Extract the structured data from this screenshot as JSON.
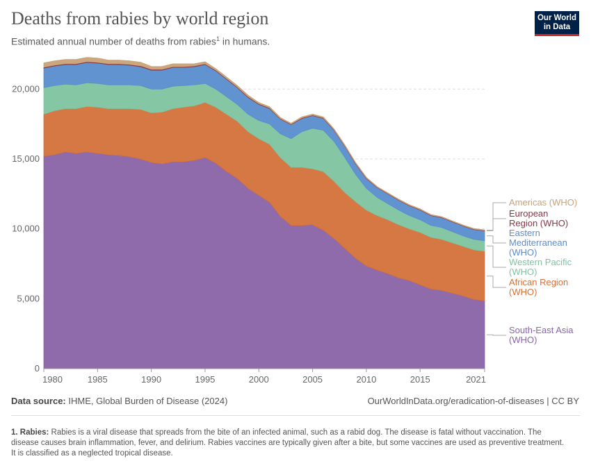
{
  "header": {
    "title": "Deaths from rabies by world region",
    "subtitle_text": "Estimated annual number of deaths from rabies",
    "subtitle_sup": "1",
    "subtitle_tail": " in humans.",
    "logo_line1": "Our World",
    "logo_line2": "in Data"
  },
  "footer": {
    "source_label": "Data source:",
    "source_value": " IHME, Global Burden of Disease (2024)",
    "site": "OurWorldInData.org/eradication-of-diseases | CC BY",
    "note_label": "1. Rabies:",
    "note_text": " Rabies is a viral disease that spreads from the bite of an infected animal, such as a rabid dog. The disease is fatal without vaccination. The disease causes brain inflammation, fever, and delirium. Rabies vaccines are typically given after a bite, but some vaccines are used as preventive treatment. It is classified as a neglected tropical disease."
  },
  "colors": {
    "sea": "#8963a8",
    "afr": "#d4713a",
    "wp": "#7ec4a0",
    "em": "#5a8dcf",
    "eur": "#8a3445",
    "am": "#c9a277",
    "grid": "#dddddd"
  },
  "chart_data": {
    "type": "area",
    "stacked": true,
    "x": [
      1980,
      1981,
      1982,
      1983,
      1984,
      1985,
      1986,
      1987,
      1988,
      1989,
      1990,
      1991,
      1992,
      1993,
      1994,
      1995,
      1996,
      1997,
      1998,
      1999,
      2000,
      2001,
      2002,
      2003,
      2004,
      2005,
      2006,
      2007,
      2008,
      2009,
      2010,
      2011,
      2012,
      2013,
      2014,
      2015,
      2016,
      2017,
      2018,
      2019,
      2020,
      2021
    ],
    "xlim": [
      1980,
      2021
    ],
    "ylim": [
      0,
      22000
    ],
    "x_ticks": [
      1980,
      1985,
      1990,
      1995,
      2000,
      2005,
      2010,
      2015,
      2021
    ],
    "y_ticks": [
      0,
      5000,
      10000,
      15000,
      20000
    ],
    "y_tick_labels": [
      "0",
      "5,000",
      "10,000",
      "15,000",
      "20,000"
    ],
    "grid": true,
    "legend": "right",
    "series": [
      {
        "key": "sea",
        "name": "South-East Asia (WHO)",
        "label_lines": [
          "South-East Asia",
          "(WHO)"
        ],
        "values": [
          15200,
          15300,
          15500,
          15400,
          15500,
          15400,
          15300,
          15250,
          15150,
          15000,
          14750,
          14650,
          14800,
          14800,
          14900,
          15100,
          14700,
          14100,
          13600,
          12900,
          12400,
          11900,
          10900,
          10250,
          10250,
          10300,
          9900,
          9300,
          8600,
          7900,
          7350,
          7050,
          6800,
          6500,
          6300,
          6000,
          5700,
          5600,
          5400,
          5200,
          4950,
          4850
        ]
      },
      {
        "key": "afr",
        "name": "African Region (WHO)",
        "label_lines": [
          "African Region",
          "(WHO)"
        ],
        "values": [
          3000,
          3150,
          3100,
          3200,
          3250,
          3300,
          3300,
          3350,
          3450,
          3550,
          3550,
          3700,
          3800,
          3900,
          3900,
          3950,
          4000,
          4100,
          4100,
          4050,
          4050,
          4150,
          4200,
          4150,
          4150,
          4000,
          4200,
          4100,
          4000,
          4050,
          4000,
          3900,
          3850,
          3800,
          3700,
          3750,
          3700,
          3650,
          3600,
          3550,
          3550,
          3550
        ]
      },
      {
        "key": "wp",
        "name": "Western Pacific (WHO)",
        "label_lines": [
          "Western Pacific",
          "(WHO)"
        ],
        "values": [
          1900,
          1800,
          1750,
          1700,
          1700,
          1700,
          1700,
          1700,
          1700,
          1700,
          1700,
          1650,
          1600,
          1550,
          1500,
          1350,
          1300,
          1250,
          1200,
          1250,
          1300,
          1450,
          1700,
          2050,
          2550,
          2900,
          2950,
          2850,
          2500,
          1950,
          1550,
          1300,
          1150,
          1050,
          950,
          900,
          850,
          850,
          800,
          750,
          750,
          750
        ]
      },
      {
        "key": "em",
        "name": "Eastern Mediterranean (WHO)",
        "label_lines": [
          "Eastern",
          "Mediterranean",
          "(WHO)"
        ],
        "values": [
          1400,
          1400,
          1400,
          1450,
          1450,
          1450,
          1450,
          1450,
          1400,
          1350,
          1350,
          1350,
          1350,
          1300,
          1300,
          1350,
          1300,
          1250,
          1200,
          1200,
          1150,
          1100,
          1050,
          1000,
          950,
          900,
          850,
          800,
          800,
          750,
          700,
          700,
          700,
          700,
          700,
          700,
          700,
          700,
          700,
          700,
          700,
          700
        ]
      },
      {
        "key": "eur",
        "name": "European Region (WHO)",
        "label_lines": [
          "European",
          "Region (WHO)"
        ],
        "values": [
          60,
          60,
          60,
          60,
          60,
          60,
          60,
          60,
          60,
          60,
          60,
          60,
          50,
          50,
          50,
          50,
          50,
          50,
          50,
          50,
          50,
          50,
          40,
          40,
          40,
          40,
          40,
          40,
          40,
          40,
          40,
          30,
          30,
          30,
          30,
          30,
          30,
          30,
          30,
          30,
          30,
          30
        ]
      },
      {
        "key": "am",
        "name": "Americas (WHO)",
        "label_lines": [
          "Americas (WHO)"
        ],
        "values": [
          300,
          300,
          300,
          300,
          300,
          300,
          250,
          250,
          250,
          250,
          200,
          200,
          200,
          200,
          150,
          150,
          100,
          100,
          100,
          100,
          80,
          80,
          70,
          60,
          60,
          60,
          60,
          50,
          50,
          50,
          40,
          40,
          40,
          40,
          40,
          40,
          40,
          40,
          40,
          40,
          40,
          40
        ]
      }
    ]
  }
}
